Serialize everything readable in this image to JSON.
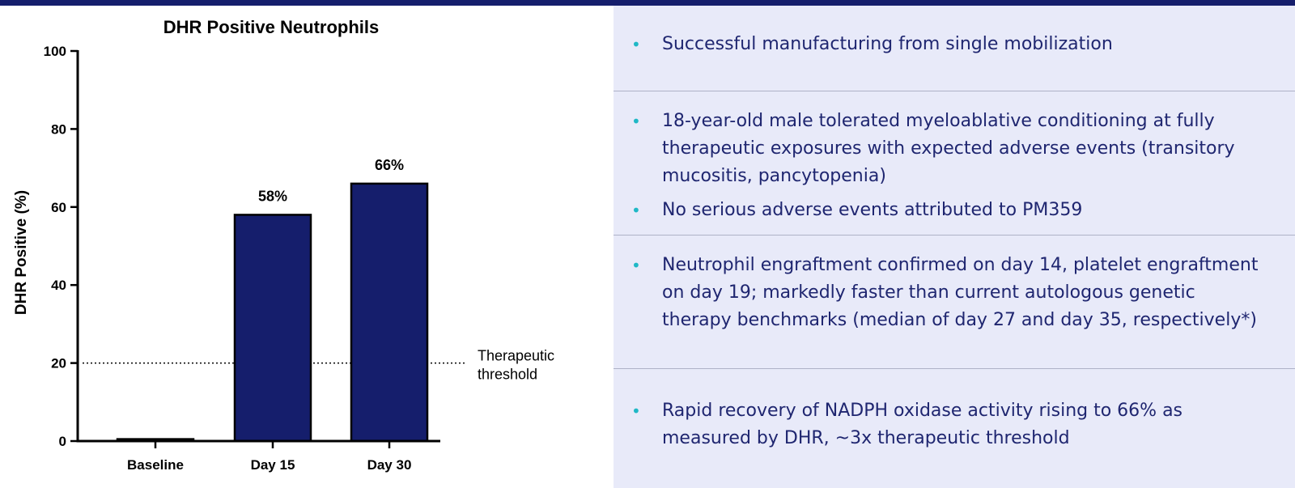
{
  "chart_data": {
    "type": "bar",
    "title": "DHR Positive  Neutrophils",
    "ylabel": "DHR  Positive (%)",
    "xlabel": "",
    "categories": [
      "Baseline",
      "Day 15",
      "Day 30"
    ],
    "values": [
      0.5,
      58,
      66
    ],
    "data_labels": [
      "",
      "58%",
      "66%"
    ],
    "ylim": [
      0,
      100
    ],
    "yticks": [
      0,
      20,
      40,
      60,
      80,
      100
    ],
    "grid": false,
    "bar_color": "#151e6c",
    "threshold": {
      "value": 20,
      "label_line1": "Therapeutic",
      "label_line2": "threshold"
    }
  },
  "bullets": {
    "sections": [
      {
        "items": [
          "Successful manufacturing from single mobilization"
        ]
      },
      {
        "items": [
          "18-year-old male tolerated myeloablative conditioning at fully therapeutic exposures with expected adverse events (transitory mucositis, pancytopenia)",
          "No serious adverse events attributed to PM359"
        ]
      },
      {
        "items": [
          "Neutrophil engraftment confirmed on day 14, platelet engraftment on day 19; markedly faster than current autologous genetic therapy benchmarks (median of day 27 and day 35, respectively*)"
        ]
      },
      {
        "items": [
          "Rapid recovery of NADPH oxidase activity rising to 66% as measured by DHR, ~3x therapeutic threshold"
        ]
      }
    ],
    "bullet_glyph": "•",
    "bullet_color": "#1fb8c6",
    "text_color": "#1f2670"
  }
}
